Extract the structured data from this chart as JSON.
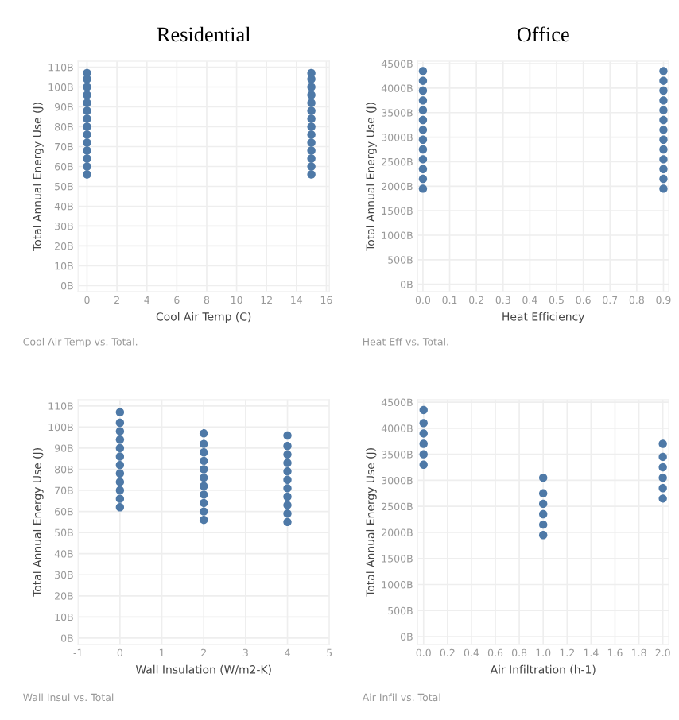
{
  "chart_data": [
    {
      "type": "scatter",
      "title": "Residential",
      "xlabel": "Cool Air Temp (C)",
      "ylabel": "Total Annual Energy Use (J)",
      "annotations": [
        "Cool Air Temp vs. Total."
      ],
      "x": [
        0,
        0,
        0,
        0,
        0,
        0,
        0,
        0,
        0,
        0,
        0,
        0,
        0,
        0,
        15,
        15,
        15,
        15,
        15,
        15,
        15,
        15,
        15,
        15,
        15,
        15,
        15,
        15
      ],
      "series": [
        {
          "color": "#4e79a7",
          "values": [
            56,
            60,
            64,
            68,
            72,
            76,
            80,
            84,
            88,
            92,
            96,
            100,
            104,
            107,
            56,
            60,
            64,
            68,
            72,
            76,
            80,
            84,
            88,
            92,
            96,
            100,
            104,
            107
          ]
        }
      ],
      "xlim": [
        -0.6,
        16.2
      ],
      "xticks": [
        0,
        2,
        4,
        6,
        8,
        10,
        12,
        14,
        16
      ],
      "ylim": [
        -3,
        113
      ],
      "yticks": [
        {
          "value": 0,
          "label": "0B"
        },
        {
          "value": 10,
          "label": "10B"
        },
        {
          "value": 20,
          "label": "20B"
        },
        {
          "value": 30,
          "label": "30B"
        },
        {
          "value": 40,
          "label": "40B"
        },
        {
          "value": 50,
          "label": "50B"
        },
        {
          "value": 60,
          "label": "60B"
        },
        {
          "value": 70,
          "label": "70B"
        },
        {
          "value": 80,
          "label": "80B"
        },
        {
          "value": 90,
          "label": "90B"
        },
        {
          "value": 100,
          "label": "100B"
        },
        {
          "value": 110,
          "label": "110B"
        }
      ],
      "grid": true,
      "marker": "circle"
    },
    {
      "type": "scatter",
      "title": "Office",
      "xlabel": "Heat Efficiency",
      "ylabel": "Total Annual Energy Use (J)",
      "annotations": [
        "Heat Eff vs. Total."
      ],
      "x": [
        0,
        0,
        0,
        0,
        0,
        0,
        0,
        0,
        0,
        0,
        0,
        0,
        0,
        0.9,
        0.9,
        0.9,
        0.9,
        0.9,
        0.9,
        0.9,
        0.9,
        0.9,
        0.9,
        0.9,
        0.9,
        0.9
      ],
      "series": [
        {
          "color": "#4e79a7",
          "values": [
            1950,
            2150,
            2350,
            2550,
            2750,
            2950,
            3150,
            3350,
            3550,
            3750,
            3950,
            4150,
            4350,
            1950,
            2150,
            2350,
            2550,
            2750,
            2950,
            3150,
            3350,
            3550,
            3750,
            3950,
            4150,
            4350
          ]
        }
      ],
      "xlim": [
        -0.02,
        0.92
      ],
      "xticks": [
        {
          "value": 0,
          "label": "0.0"
        },
        {
          "value": 0.1,
          "label": "0.1"
        },
        {
          "value": 0.2,
          "label": "0.2"
        },
        {
          "value": 0.3,
          "label": "0.3"
        },
        {
          "value": 0.4,
          "label": "0.4"
        },
        {
          "value": 0.5,
          "label": "0.5"
        },
        {
          "value": 0.6,
          "label": "0.6"
        },
        {
          "value": 0.7,
          "label": "0.7"
        },
        {
          "value": 0.8,
          "label": "0.8"
        },
        {
          "value": 0.9,
          "label": "0.9"
        }
      ],
      "ylim": [
        -150,
        4550
      ],
      "yticks": [
        {
          "value": 0,
          "label": "0B"
        },
        {
          "value": 500,
          "label": "500B"
        },
        {
          "value": 1000,
          "label": "1000B"
        },
        {
          "value": 1500,
          "label": "1500B"
        },
        {
          "value": 2000,
          "label": "2000B"
        },
        {
          "value": 2500,
          "label": "2500B"
        },
        {
          "value": 3000,
          "label": "3000B"
        },
        {
          "value": 3500,
          "label": "3500B"
        },
        {
          "value": 4000,
          "label": "4000B"
        },
        {
          "value": 4500,
          "label": "4500B"
        }
      ],
      "grid": true,
      "marker": "circle"
    },
    {
      "type": "scatter",
      "xlabel": "Wall Insulation (W/m2-K)",
      "ylabel": "Total Annual Energy Use (J)",
      "annotations": [
        "Wall Insul vs. Total"
      ],
      "x": [
        0,
        0,
        0,
        0,
        0,
        0,
        0,
        0,
        0,
        0,
        0,
        0,
        2,
        2,
        2,
        2,
        2,
        2,
        2,
        2,
        2,
        2,
        2,
        4,
        4,
        4,
        4,
        4,
        4,
        4,
        4,
        4,
        4,
        4
      ],
      "series": [
        {
          "color": "#4e79a7",
          "values": [
            62,
            66,
            70,
            74,
            78,
            82,
            86,
            90,
            94,
            98,
            102,
            107,
            56,
            60,
            64,
            68,
            72,
            76,
            80,
            84,
            88,
            92,
            97,
            55,
            59,
            63,
            67,
            71,
            75,
            79,
            83,
            87,
            91,
            96
          ]
        }
      ],
      "xlim": [
        -1,
        5
      ],
      "xticks": [
        {
          "value": -1,
          "label": "-1"
        },
        0,
        1,
        2,
        3,
        4,
        5
      ],
      "ylim": [
        -3,
        113
      ],
      "yticks": [
        {
          "value": 0,
          "label": "0B"
        },
        {
          "value": 10,
          "label": "10B"
        },
        {
          "value": 20,
          "label": "20B"
        },
        {
          "value": 30,
          "label": "30B"
        },
        {
          "value": 40,
          "label": "40B"
        },
        {
          "value": 50,
          "label": "50B"
        },
        {
          "value": 60,
          "label": "60B"
        },
        {
          "value": 70,
          "label": "70B"
        },
        {
          "value": 80,
          "label": "80B"
        },
        {
          "value": 90,
          "label": "90B"
        },
        {
          "value": 100,
          "label": "100B"
        },
        {
          "value": 110,
          "label": "110B"
        }
      ],
      "grid": true,
      "marker": "circle"
    },
    {
      "type": "scatter",
      "xlabel": "Air Infiltration (h-1)",
      "ylabel": "Total Annual Energy Use (J)",
      "annotations": [
        "Air Infil vs. Total"
      ],
      "x": [
        0,
        0,
        0,
        0,
        0,
        0,
        1,
        1,
        1,
        1,
        1,
        1,
        2,
        2,
        2,
        2,
        2,
        2
      ],
      "series": [
        {
          "color": "#4e79a7",
          "values": [
            3300,
            3500,
            3700,
            3900,
            4100,
            4350,
            1950,
            2150,
            2350,
            2550,
            2750,
            3050,
            2650,
            2850,
            3050,
            3250,
            3450,
            3700
          ]
        }
      ],
      "xlim": [
        -0.05,
        2.05
      ],
      "xticks": [
        {
          "value": 0,
          "label": "0.0"
        },
        {
          "value": 0.2,
          "label": "0.2"
        },
        {
          "value": 0.4,
          "label": "0.4"
        },
        {
          "value": 0.6,
          "label": "0.6"
        },
        {
          "value": 0.8,
          "label": "0.8"
        },
        {
          "value": 1.0,
          "label": "1.0"
        },
        {
          "value": 1.2,
          "label": "1.2"
        },
        {
          "value": 1.4,
          "label": "1.4"
        },
        {
          "value": 1.6,
          "label": "1.6"
        },
        {
          "value": 1.8,
          "label": "1.8"
        },
        {
          "value": 2.0,
          "label": "2.0"
        }
      ],
      "ylim": [
        -150,
        4550
      ],
      "yticks": [
        {
          "value": 0,
          "label": "0B"
        },
        {
          "value": 500,
          "label": "500B"
        },
        {
          "value": 1000,
          "label": "1000B"
        },
        {
          "value": 1500,
          "label": "1500B"
        },
        {
          "value": 2000,
          "label": "2000B"
        },
        {
          "value": 2500,
          "label": "2500B"
        },
        {
          "value": 3000,
          "label": "3000B"
        },
        {
          "value": 3500,
          "label": "3500B"
        },
        {
          "value": 4000,
          "label": "4000B"
        },
        {
          "value": 4500,
          "label": "4500B"
        }
      ],
      "grid": true,
      "marker": "circle"
    }
  ]
}
